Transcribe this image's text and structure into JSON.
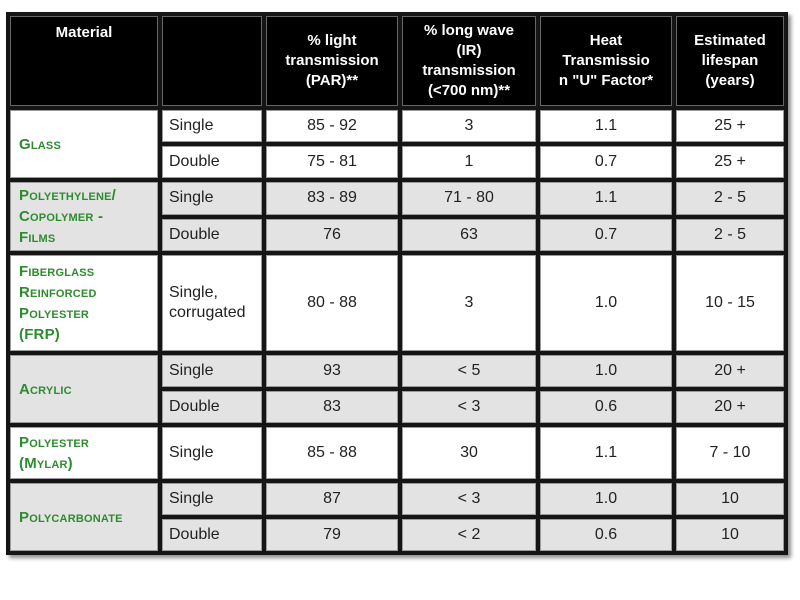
{
  "table": {
    "headers": [
      "Material",
      "",
      "% light transmission (PAR)**",
      "% long wave (IR) transmission (<700 nm)**",
      "Heat Transmissio n \"U\" Factor*",
      "Estimated lifespan (years)"
    ],
    "header_lines": [
      [
        "Material"
      ],
      [],
      [
        "% light",
        "transmission",
        "(PAR)**"
      ],
      [
        "% long wave",
        "(IR)",
        "transmission",
        "(<700 nm)**"
      ],
      [
        "Heat",
        "Transmissio",
        "n \"U\" Factor*"
      ],
      [
        "Estimated",
        "lifespan",
        "(years)"
      ]
    ],
    "groups": [
      {
        "material_lines": [
          "Glass"
        ],
        "shade": "white",
        "rows": [
          {
            "type_lines": [
              "Single"
            ],
            "par": "85 - 92",
            "ir": "3",
            "u": "1.1",
            "life": "25 +"
          },
          {
            "type_lines": [
              "Double"
            ],
            "par": "75 - 81",
            "ir": "1",
            "u": "0.7",
            "life": "25 +"
          }
        ]
      },
      {
        "material_lines": [
          "Polyethylene/",
          "Copolymer -",
          "Films"
        ],
        "shade": "grey",
        "rows": [
          {
            "type_lines": [
              "Single"
            ],
            "par": "83 - 89",
            "ir": "71 - 80",
            "u": "1.1",
            "life": "2 - 5"
          },
          {
            "type_lines": [
              "Double"
            ],
            "par": "76",
            "ir": "63",
            "u": "0.7",
            "life": "2 - 5"
          }
        ]
      },
      {
        "material_lines": [
          "Fiberglass",
          "Reinforced",
          "Polyester",
          "(FRP)"
        ],
        "shade": "white",
        "tall": true,
        "rows": [
          {
            "type_lines": [
              "Single,",
              "corrugated"
            ],
            "par": "80 - 88",
            "ir": "3",
            "u": "1.0",
            "life": "10 - 15"
          }
        ]
      },
      {
        "material_lines": [
          "Acrylic"
        ],
        "shade": "grey",
        "rows": [
          {
            "type_lines": [
              "Single"
            ],
            "par": "93",
            "ir": "< 5",
            "u": "1.0",
            "life": "20 +"
          },
          {
            "type_lines": [
              "Double"
            ],
            "par": "83",
            "ir": "< 3",
            "u": "0.6",
            "life": "20 +"
          }
        ]
      },
      {
        "material_lines": [
          "Polyester",
          "(Mylar)"
        ],
        "shade": "white",
        "tall_medium": true,
        "rows": [
          {
            "type_lines": [
              "Single"
            ],
            "par": "85 - 88",
            "ir": "30",
            "u": "1.1",
            "life": "7 - 10"
          }
        ]
      },
      {
        "material_lines": [
          "Polycarbonate"
        ],
        "shade": "grey",
        "rows": [
          {
            "type_lines": [
              "Single"
            ],
            "par": "87",
            "ir": "< 3",
            "u": "1.0",
            "life": "10"
          },
          {
            "type_lines": [
              "Double"
            ],
            "par": "79",
            "ir": "< 2",
            "u": "0.6",
            "life": "10"
          }
        ]
      }
    ]
  },
  "colors": {
    "material_text": "#2e8b2e",
    "header_bg": "#000000",
    "grey_row": "#e3e3e3",
    "white_row": "#ffffff"
  }
}
